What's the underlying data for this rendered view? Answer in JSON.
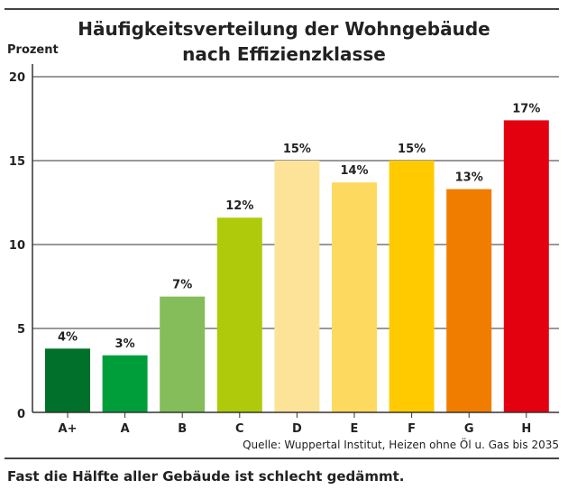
{
  "chart_data": {
    "type": "bar",
    "title": "Häufigkeitsverteilung der Wohngebäude nach Effizienzklasse",
    "title_lines": [
      "Häufigkeitsverteilung der Wohngebäude",
      "nach Effizienzklasse"
    ],
    "ylabel": "Prozent",
    "xlabel": "",
    "ylim": [
      0,
      20
    ],
    "yticks": [
      0,
      5,
      10,
      15,
      20
    ],
    "grid": true,
    "categories": [
      "A+",
      "A",
      "B",
      "C",
      "D",
      "E",
      "F",
      "G",
      "H"
    ],
    "values": [
      3.8,
      3.4,
      6.9,
      11.6,
      15.0,
      13.7,
      15.0,
      13.3,
      17.4
    ],
    "data_labels": [
      "4%",
      "3%",
      "7%",
      "12%",
      "15%",
      "14%",
      "15%",
      "13%",
      "17%"
    ],
    "colors": [
      "#00702a",
      "#009e3a",
      "#84bd5a",
      "#afca0b",
      "#fde398",
      "#fed95f",
      "#ffcb00",
      "#f07d00",
      "#e3000f"
    ]
  },
  "source": "Quelle: Wuppertal Institut, Heizen ohne Öl u. Gas bis 2035",
  "caption": "Fast die Hälfte aller Gebäude ist schlecht gedämmt."
}
